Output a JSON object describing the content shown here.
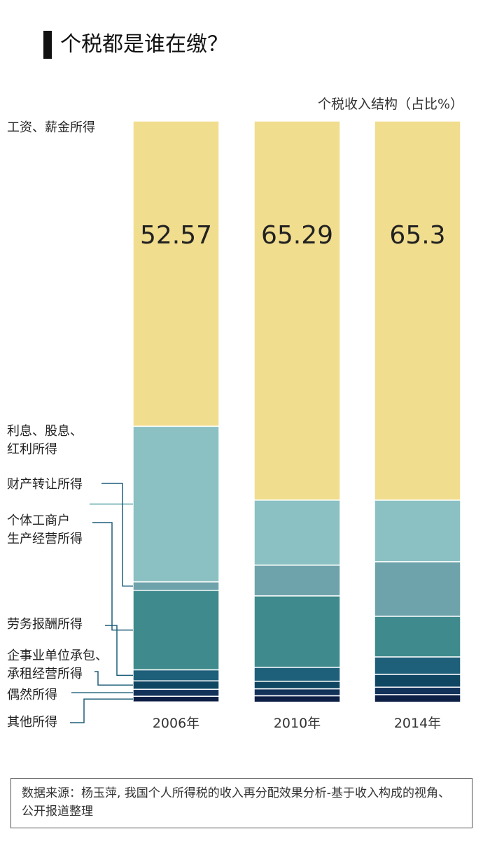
{
  "chart_data": {
    "type": "stacked_bar",
    "title": "个税都是谁在缴？",
    "subtitle": "个税收入结构（占比%）",
    "categories": [
      "2006年",
      "2010年",
      "2014年"
    ],
    "ylim": [
      0,
      100
    ],
    "series": [
      {
        "name": "工资、薪金所得",
        "color": "#f1dd8e",
        "values": [
          52.57,
          65.29,
          65.3
        ],
        "show_values": true
      },
      {
        "name": "利息、股息、\n红利所得",
        "color": "#8bc1c3",
        "values": [
          26.8,
          11.2,
          10.6
        ]
      },
      {
        "name": "财产转让所得",
        "color": "#6fa3ab",
        "values": [
          1.45,
          5.3,
          9.4
        ]
      },
      {
        "name": "个体工商户\n生产经营所得",
        "color": "#3f8a8c",
        "values": [
          13.7,
          12.3,
          7.0
        ]
      },
      {
        "name": "劳务报酬所得",
        "color": "#1e5f7a",
        "values": [
          1.9,
          2.4,
          3.0
        ]
      },
      {
        "name": "企事业单位承包、\n承租经营所得",
        "color": "#0f4763",
        "values": [
          1.45,
          1.3,
          2.2
        ]
      },
      {
        "name": "偶然所得",
        "color": "#12325a",
        "values": [
          1.2,
          1.2,
          1.3
        ]
      },
      {
        "name": "其他所得",
        "color": "#0d1f45",
        "values": [
          0.97,
          1.1,
          1.3
        ]
      }
    ],
    "source": "数据来源：杨玉萍, 我国个人所得税的收入再分配效果分析-基于收入构成的视角、公开报道整理"
  }
}
